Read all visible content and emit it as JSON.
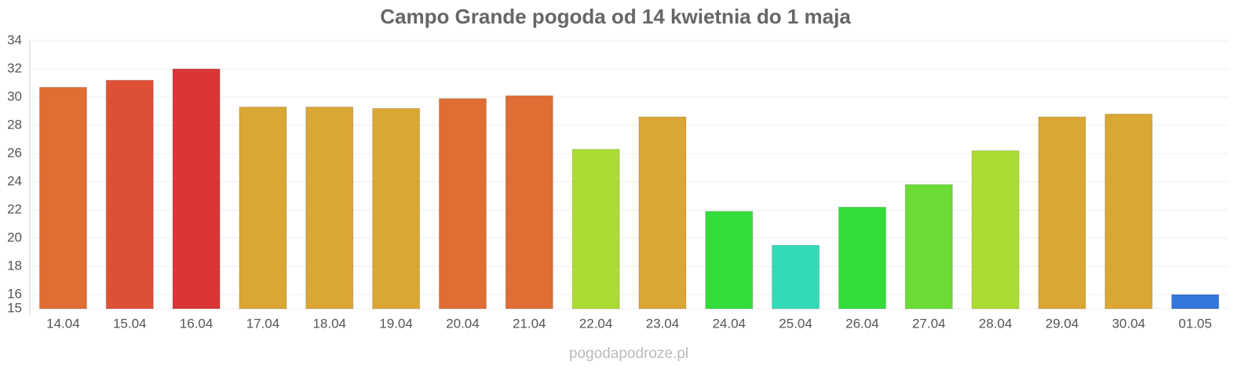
{
  "chart_data": {
    "type": "bar",
    "title": "Campo Grande pogoda od 14 kwietnia do 1 maja",
    "source": "pogodapodroze.pl",
    "categories": [
      "14.04",
      "15.04",
      "16.04",
      "17.04",
      "18.04",
      "19.04",
      "20.04",
      "21.04",
      "22.04",
      "23.04",
      "24.04",
      "25.04",
      "26.04",
      "27.04",
      "28.04",
      "29.04",
      "30.04",
      "01.05"
    ],
    "values": [
      30.7,
      31.2,
      32,
      29.3,
      29.3,
      29.2,
      29.9,
      30.1,
      26.3,
      28.6,
      21.9,
      19.5,
      22.2,
      23.8,
      26.2,
      28.6,
      28.8,
      16
    ],
    "colors": [
      "#de6e33",
      "#dd5035",
      "#da3636",
      "#daa734",
      "#daa734",
      "#daa734",
      "#de6e33",
      "#de6e33",
      "#acdb33",
      "#daa734",
      "#33dd3a",
      "#33dab5",
      "#33dd3a",
      "#6adc35",
      "#acdb33",
      "#daa734",
      "#daa734",
      "#3376db"
    ],
    "ylim": [
      15,
      34
    ],
    "yticks": [
      15,
      16,
      18,
      20,
      22,
      24,
      26,
      28,
      30,
      32,
      34
    ],
    "grid": true
  }
}
